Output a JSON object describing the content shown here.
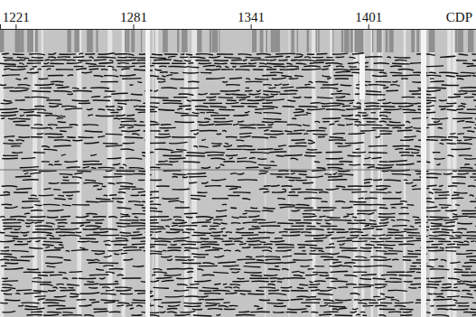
{
  "chart_data": {
    "type": "seismic_section",
    "x_label": "CDP",
    "xlim": [
      1213,
      1456
    ],
    "xticks": [
      1221,
      1281,
      1341,
      1401
    ],
    "tick_labels": "x"
  }
}
